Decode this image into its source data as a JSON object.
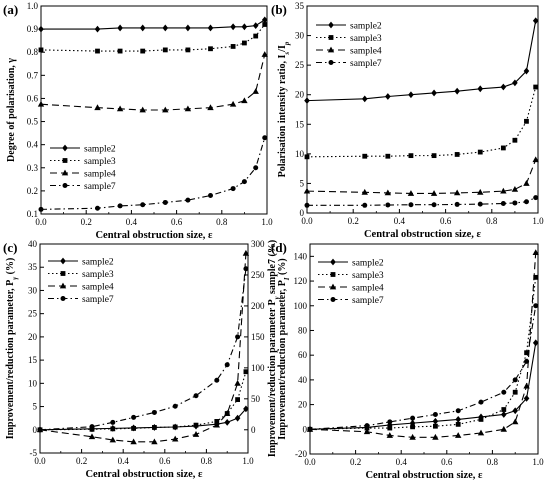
{
  "chart_data": [
    {
      "type": "line",
      "panel": "(a)",
      "xlabel": "Central obstruction size, ε",
      "ylabel": "Degree of polarisation, γ",
      "xlim": [
        0,
        1
      ],
      "ylim": [
        0.1,
        1.0
      ],
      "xticks": [
        "0.0",
        "0.2",
        "0.4",
        "0.6",
        "0.8",
        "1.0"
      ],
      "yticks": [
        "0.1",
        "0.2",
        "0.3",
        "0.4",
        "0.5",
        "0.6",
        "0.7",
        "0.8",
        "0.9",
        "1.0"
      ],
      "legend": "bottom-left",
      "series": [
        {
          "name": "sample2",
          "marker": "diamond",
          "dash": "solid",
          "x": [
            0,
            0.25,
            0.35,
            0.45,
            0.55,
            0.65,
            0.75,
            0.85,
            0.9,
            0.95,
            0.99
          ],
          "y": [
            0.9,
            0.9,
            0.905,
            0.905,
            0.905,
            0.905,
            0.905,
            0.91,
            0.91,
            0.915,
            0.94
          ]
        },
        {
          "name": "sample3",
          "marker": "square",
          "dash": "dotted",
          "x": [
            0,
            0.25,
            0.35,
            0.45,
            0.55,
            0.65,
            0.75,
            0.85,
            0.9,
            0.95,
            0.99
          ],
          "y": [
            0.81,
            0.805,
            0.805,
            0.805,
            0.81,
            0.81,
            0.815,
            0.825,
            0.84,
            0.87,
            0.92
          ]
        },
        {
          "name": "sample4",
          "marker": "triangle",
          "dash": "dashed",
          "x": [
            0,
            0.25,
            0.35,
            0.45,
            0.55,
            0.65,
            0.75,
            0.85,
            0.9,
            0.95,
            0.99
          ],
          "y": [
            0.575,
            0.56,
            0.555,
            0.55,
            0.55,
            0.555,
            0.56,
            0.575,
            0.59,
            0.63,
            0.79
          ]
        },
        {
          "name": "sample7",
          "marker": "circle",
          "dash": "dashdot",
          "x": [
            0,
            0.25,
            0.35,
            0.45,
            0.55,
            0.65,
            0.75,
            0.85,
            0.9,
            0.95,
            0.99
          ],
          "y": [
            0.12,
            0.125,
            0.135,
            0.14,
            0.15,
            0.16,
            0.18,
            0.21,
            0.24,
            0.3,
            0.43
          ]
        }
      ]
    },
    {
      "type": "line",
      "panel": "(b)",
      "xlabel": "Central obstruction size, ε",
      "ylabel": "Polarisation intensity ratio, I_s/I_p",
      "xlim": [
        0,
        1
      ],
      "ylim": [
        0,
        35
      ],
      "xticks": [
        "0.0",
        "0.2",
        "0.4",
        "0.6",
        "0.8",
        "1.0"
      ],
      "yticks": [
        "0",
        "5",
        "10",
        "15",
        "20",
        "25",
        "30",
        "35"
      ],
      "legend": "top-left",
      "series": [
        {
          "name": "sample2",
          "marker": "diamond",
          "dash": "solid",
          "x": [
            0,
            0.25,
            0.35,
            0.45,
            0.55,
            0.65,
            0.75,
            0.85,
            0.9,
            0.95,
            0.99
          ],
          "y": [
            19.0,
            19.3,
            19.7,
            20.0,
            20.3,
            20.6,
            21.0,
            21.3,
            22.0,
            24.0,
            32.5
          ]
        },
        {
          "name": "sample3",
          "marker": "square",
          "dash": "dotted",
          "x": [
            0,
            0.25,
            0.35,
            0.45,
            0.55,
            0.65,
            0.75,
            0.85,
            0.9,
            0.95,
            0.99
          ],
          "y": [
            9.5,
            9.6,
            9.6,
            9.7,
            9.7,
            9.9,
            10.3,
            11.0,
            12.3,
            15.5,
            21.3
          ]
        },
        {
          "name": "sample4",
          "marker": "triangle",
          "dash": "dashed",
          "x": [
            0,
            0.25,
            0.35,
            0.45,
            0.55,
            0.65,
            0.75,
            0.85,
            0.9,
            0.95,
            0.99
          ],
          "y": [
            3.7,
            3.5,
            3.4,
            3.3,
            3.3,
            3.4,
            3.5,
            3.7,
            4.0,
            5.0,
            9.0
          ]
        },
        {
          "name": "sample7",
          "marker": "circle",
          "dash": "dashdot",
          "x": [
            0,
            0.25,
            0.35,
            0.45,
            0.55,
            0.65,
            0.75,
            0.85,
            0.9,
            0.95,
            0.99
          ],
          "y": [
            1.3,
            1.3,
            1.35,
            1.4,
            1.4,
            1.45,
            1.5,
            1.6,
            1.7,
            1.9,
            2.6
          ]
        }
      ]
    },
    {
      "type": "line",
      "panel": "(c)",
      "xlabel": "Central obstruction size, ε",
      "ylabel": "Improvement/reduction parameter, P_γ (%)",
      "y2label": "Improvement/reduction parameter P_γ sample7 (%)",
      "xlim": [
        0,
        1
      ],
      "ylim": [
        -5,
        40
      ],
      "y2lim": [
        -37.5,
        300
      ],
      "xticks": [
        "0.0",
        "0.2",
        "0.4",
        "0.6",
        "0.8",
        "1.0"
      ],
      "yticks": [
        "-5",
        "0",
        "5",
        "10",
        "15",
        "20",
        "25",
        "30",
        "35",
        "40"
      ],
      "y2ticks": [
        "0",
        "50",
        "100",
        "150",
        "200",
        "250",
        "300"
      ],
      "legend": "top-left",
      "series": [
        {
          "name": "sample2",
          "marker": "diamond",
          "dash": "solid",
          "axis": "left",
          "x": [
            0,
            0.25,
            0.35,
            0.45,
            0.55,
            0.65,
            0.75,
            0.85,
            0.9,
            0.95,
            0.99
          ],
          "y": [
            0,
            0.2,
            0.3,
            0.4,
            0.5,
            0.6,
            0.8,
            1.2,
            1.6,
            2.5,
            4.5
          ]
        },
        {
          "name": "sample3",
          "marker": "square",
          "dash": "dotted",
          "axis": "left",
          "x": [
            0,
            0.25,
            0.35,
            0.45,
            0.55,
            0.65,
            0.75,
            0.85,
            0.9,
            0.95,
            0.99
          ],
          "y": [
            0,
            0.1,
            0.2,
            0.3,
            0.5,
            0.6,
            1.0,
            1.8,
            3.5,
            6.5,
            12.5
          ]
        },
        {
          "name": "sample4",
          "marker": "triangle",
          "dash": "dashed",
          "axis": "left",
          "x": [
            0,
            0.25,
            0.35,
            0.45,
            0.55,
            0.65,
            0.75,
            0.85,
            0.9,
            0.95,
            0.99
          ],
          "y": [
            0,
            -1.5,
            -2.2,
            -2.6,
            -2.6,
            -2.0,
            -1.0,
            1.0,
            3.5,
            10.0,
            38.0
          ]
        },
        {
          "name": "sample7",
          "marker": "circle",
          "dash": "dashdot",
          "axis": "right",
          "x": [
            0,
            0.25,
            0.35,
            0.45,
            0.55,
            0.65,
            0.75,
            0.85,
            0.9,
            0.95,
            0.99
          ],
          "y": [
            0,
            5,
            12,
            20,
            28,
            38,
            55,
            80,
            105,
            150,
            260
          ]
        }
      ]
    },
    {
      "type": "line",
      "panel": "(d)",
      "xlabel": "Central obstruction size, ε",
      "ylabel": "Improvement/reduction parameter, P_I (%)",
      "xlim": [
        0,
        1
      ],
      "ylim": [
        -20,
        150
      ],
      "xticks": [
        "0.0",
        "0.2",
        "0.4",
        "0.6",
        "0.8",
        "1.0"
      ],
      "yticks": [
        "-20",
        "0",
        "20",
        "40",
        "60",
        "80",
        "100",
        "120",
        "140"
      ],
      "legend": "top-left",
      "series": [
        {
          "name": "sample2",
          "marker": "diamond",
          "dash": "solid",
          "x": [
            0,
            0.25,
            0.35,
            0.45,
            0.55,
            0.65,
            0.75,
            0.85,
            0.9,
            0.95,
            0.99
          ],
          "y": [
            0,
            1.5,
            3.5,
            5,
            6.5,
            8,
            10,
            12,
            15,
            25,
            70
          ]
        },
        {
          "name": "sample3",
          "marker": "square",
          "dash": "dotted",
          "x": [
            0,
            0.25,
            0.35,
            0.45,
            0.55,
            0.65,
            0.75,
            0.85,
            0.9,
            0.95,
            0.99
          ],
          "y": [
            0,
            1,
            1,
            2,
            2.5,
            4,
            8,
            16,
            30,
            62,
            123
          ]
        },
        {
          "name": "sample4",
          "marker": "triangle",
          "dash": "dashed",
          "x": [
            0,
            0.25,
            0.35,
            0.45,
            0.55,
            0.65,
            0.75,
            0.85,
            0.9,
            0.95,
            0.99
          ],
          "y": [
            0,
            -2,
            -5,
            -6.5,
            -6.5,
            -5,
            -3,
            0,
            6,
            35,
            143
          ]
        },
        {
          "name": "sample7",
          "marker": "circle",
          "dash": "dashdot",
          "x": [
            0,
            0.25,
            0.35,
            0.45,
            0.55,
            0.65,
            0.75,
            0.85,
            0.9,
            0.95,
            0.99
          ],
          "y": [
            0,
            3,
            6,
            9,
            12,
            15,
            22,
            30,
            40,
            55,
            100
          ]
        }
      ]
    }
  ]
}
